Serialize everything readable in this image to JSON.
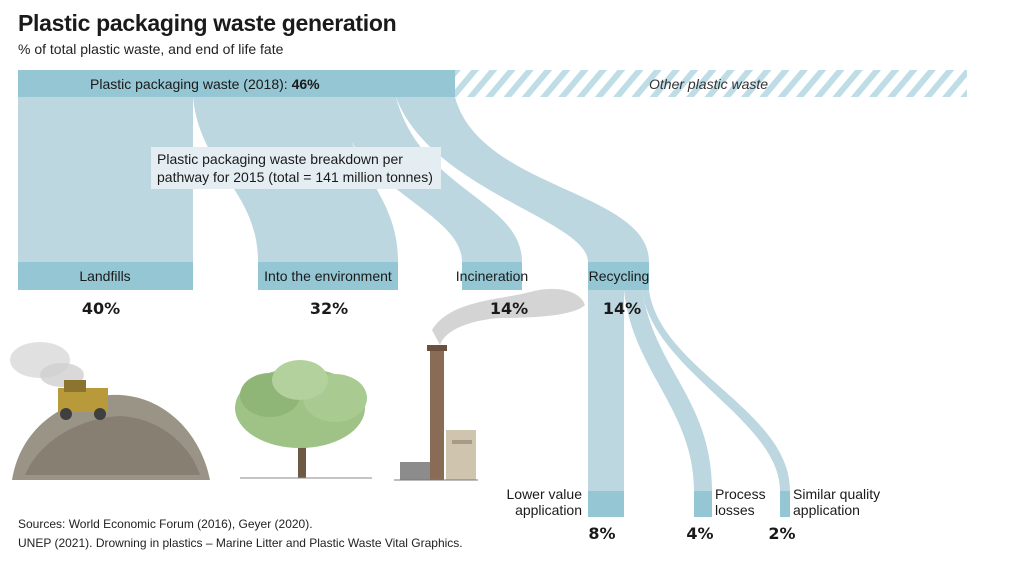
{
  "title": "Plastic packaging waste generation",
  "subtitle": "% of total plastic waste, and end of life fate",
  "top_bar": {
    "label": "Plastic packaging waste (2018):",
    "value": "46%",
    "other": "Other plastic waste"
  },
  "info_box": {
    "line1": "Plastic packaging waste breakdown per",
    "line2": "pathway for 2015 (total = 141 million tonnes)"
  },
  "pathways": [
    {
      "label": "Landfills",
      "value": "40%"
    },
    {
      "label": "Into the environment",
      "value": "32%"
    },
    {
      "label": "Incineration",
      "value": "14%"
    },
    {
      "label": "Recycling",
      "value": "14%"
    }
  ],
  "recycling": [
    {
      "label_line1": "Lower value",
      "label_line2": "application",
      "value": "8%"
    },
    {
      "label_line1": "Process",
      "label_line2": "losses",
      "value": "4%"
    },
    {
      "label_line1": "Similar quality",
      "label_line2": "application",
      "value": "2%"
    }
  ],
  "sources": {
    "line1": "Sources: World Economic Forum (2016), Geyer (2020).",
    "line2": "UNEP (2021). Drowning in plastics – Marine Litter and Plastic Waste Vital Graphics."
  },
  "colors": {
    "flow_light": "#bcd7e0",
    "flow_dark": "#94c6d4",
    "hatch": "#bfdde6"
  }
}
